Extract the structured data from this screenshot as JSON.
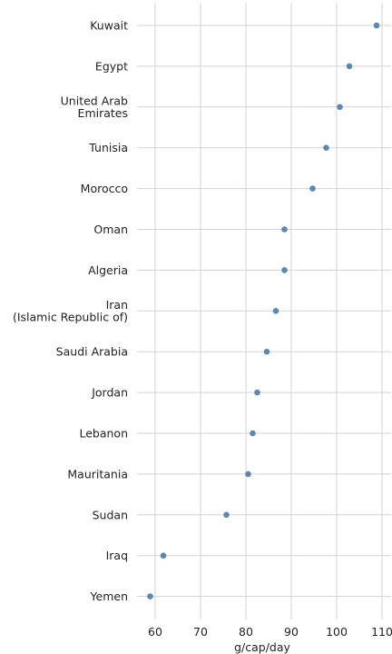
{
  "chart_data": {
    "type": "scatter",
    "title": "",
    "xlabel": "g/cap/day",
    "ylabel": "",
    "xlim": [
      56,
      112
    ],
    "x_ticks": [
      60,
      70,
      80,
      90,
      100,
      110
    ],
    "grid": true,
    "legend": "none",
    "point_color": "#5b87b3",
    "categories": [
      "Kuwait",
      "Egypt",
      "United Arab\nEmirates",
      "Tunisia",
      "Morocco",
      "Oman",
      "Algeria",
      "Iran\n(Islamic Republic of)",
      "Saudi Arabia",
      "Jordan",
      "Lebanon",
      "Mauritania",
      "Sudan",
      "Iraq",
      "Yemen"
    ],
    "values": [
      108.8,
      102.8,
      100.7,
      97.7,
      94.7,
      88.5,
      88.5,
      86.6,
      84.6,
      82.5,
      81.5,
      80.5,
      75.7,
      61.8,
      58.9
    ]
  }
}
